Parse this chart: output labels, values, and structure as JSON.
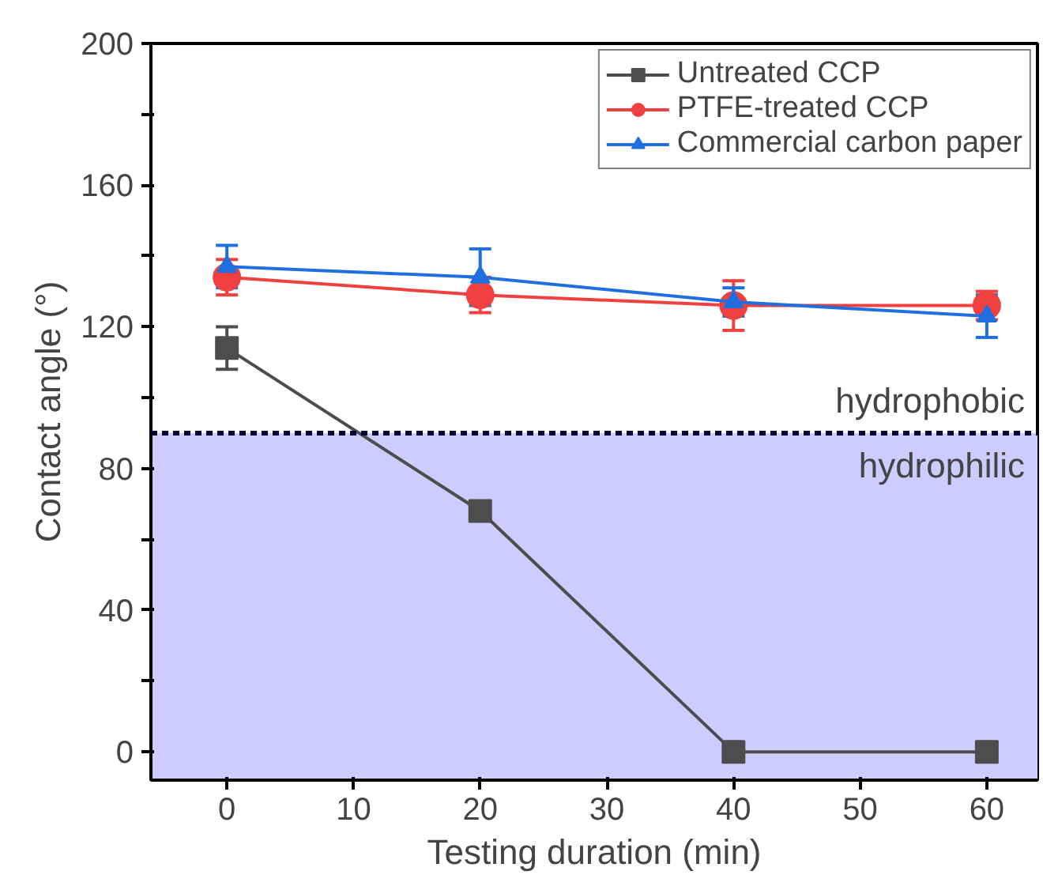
{
  "chart_data": {
    "type": "line",
    "xlabel": "Testing duration (min)",
    "ylabel": "Contact angle (°)",
    "x": [
      0,
      20,
      40,
      60
    ],
    "series": [
      {
        "name": "Untreated CCP",
        "color": "#4d4d4d",
        "marker": "square",
        "values": [
          114,
          68,
          0,
          0
        ],
        "errors": [
          6,
          2,
          null,
          null
        ]
      },
      {
        "name": "PTFE-treated CCP",
        "color": "#f04040",
        "marker": "circle",
        "values": [
          134,
          129,
          126,
          126
        ],
        "errors": [
          5,
          5,
          7,
          4
        ]
      },
      {
        "name": "Commercial carbon paper",
        "color": "#1f6fe0",
        "marker": "triangle",
        "values": [
          137,
          134,
          127,
          123
        ],
        "errors": [
          6,
          8,
          4,
          6
        ]
      }
    ],
    "xlim": [
      -6,
      64
    ],
    "ylim": [
      -8,
      200
    ],
    "xticks": [
      0,
      10,
      20,
      30,
      40,
      50,
      60
    ],
    "yticks": [
      0,
      {
        "value": 20,
        "label": null
      },
      40,
      {
        "value": 60,
        "label": null
      },
      80,
      {
        "value": 100,
        "label": null
      },
      120,
      {
        "value": 140,
        "label": null
      },
      160,
      {
        "value": 180,
        "label": null
      },
      200
    ],
    "ref_lines": [
      {
        "axis": "y",
        "value": 90,
        "label": "hydrophobic",
        "color": "#000033",
        "line_style": "dashed"
      }
    ],
    "bands": [
      {
        "axis": "y",
        "from": -8,
        "to": 90,
        "label": "hydrophilic",
        "color": "#ccccff"
      }
    ],
    "grid": false,
    "legend": "top right"
  }
}
